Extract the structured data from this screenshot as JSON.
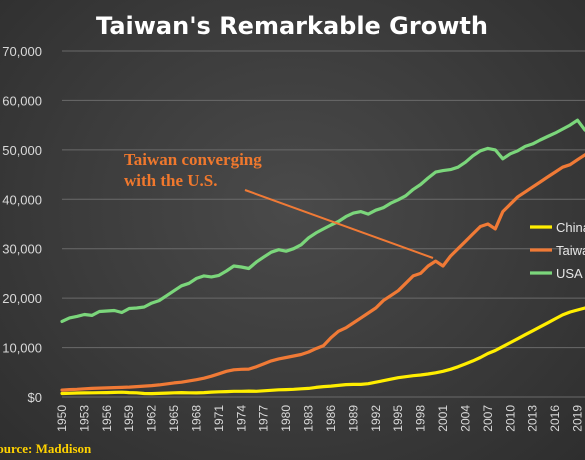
{
  "chart_data": {
    "type": "line",
    "title": "Taiwan's Remarkable Growth",
    "xlabel": "",
    "ylabel": "",
    "ylim": [
      0,
      70000
    ],
    "yticks": [
      "$0",
      "10,000",
      "20,000",
      "30,000",
      "40,000",
      "50,000",
      "60,000",
      "70,000"
    ],
    "x": [
      1950,
      1951,
      1952,
      1953,
      1954,
      1955,
      1956,
      1957,
      1958,
      1959,
      1960,
      1961,
      1962,
      1963,
      1964,
      1965,
      1966,
      1967,
      1968,
      1969,
      1970,
      1971,
      1972,
      1973,
      1974,
      1975,
      1976,
      1977,
      1978,
      1979,
      1980,
      1981,
      1982,
      1983,
      1984,
      1985,
      1986,
      1987,
      1988,
      1989,
      1990,
      1991,
      1992,
      1993,
      1994,
      1995,
      1996,
      1997,
      1998,
      1999,
      2000,
      2001,
      2002,
      2003,
      2004,
      2005,
      2006,
      2007,
      2008,
      2009,
      2010,
      2011,
      2012,
      2013,
      2014,
      2015,
      2016,
      2017,
      2018,
      2019,
      2020
    ],
    "xtick_labels": [
      "1950",
      "1953",
      "1956",
      "1959",
      "1962",
      "1965",
      "1968",
      "1971",
      "1974",
      "1977",
      "1980",
      "1983",
      "1986",
      "1989",
      "1992",
      "1995",
      "1998",
      "2001",
      "2004",
      "2007",
      "2010",
      "2013",
      "2016",
      "2019"
    ],
    "grid": true,
    "legend": "right",
    "series": [
      {
        "name": "China",
        "color": "#ffee00",
        "values": [
          700,
          750,
          800,
          820,
          850,
          880,
          900,
          930,
          980,
          900,
          850,
          700,
          680,
          720,
          780,
          850,
          900,
          850,
          820,
          900,
          1000,
          1050,
          1100,
          1150,
          1150,
          1200,
          1150,
          1250,
          1350,
          1450,
          1500,
          1550,
          1650,
          1750,
          1950,
          2100,
          2200,
          2350,
          2500,
          2550,
          2550,
          2700,
          3000,
          3300,
          3600,
          3900,
          4100,
          4300,
          4450,
          4650,
          4900,
          5200,
          5600,
          6100,
          6700,
          7300,
          8000,
          8800,
          9400,
          10200,
          11000,
          11800,
          12600,
          13400,
          14200,
          15000,
          15800,
          16600,
          17200,
          17600,
          18000
        ]
      },
      {
        "name": "Taiwan",
        "color": "#f07a36",
        "values": [
          1400,
          1500,
          1550,
          1650,
          1750,
          1800,
          1850,
          1900,
          1950,
          2000,
          2100,
          2200,
          2300,
          2450,
          2650,
          2850,
          3000,
          3250,
          3500,
          3800,
          4200,
          4700,
          5200,
          5500,
          5600,
          5650,
          6100,
          6700,
          7300,
          7700,
          8000,
          8300,
          8600,
          9100,
          9800,
          10400,
          12000,
          13300,
          14000,
          15000,
          16000,
          17000,
          18000,
          19500,
          20500,
          21500,
          23000,
          24500,
          25000,
          26500,
          27500,
          26500,
          28500,
          30000,
          31500,
          33000,
          34500,
          35000,
          34000,
          37500,
          39000,
          40500,
          41500,
          42500,
          43500,
          44500,
          45500,
          46500,
          47000,
          48000,
          49000
        ]
      },
      {
        "name": "USA",
        "color": "#7bd67b",
        "values": [
          15300,
          16000,
          16300,
          16700,
          16500,
          17300,
          17400,
          17500,
          17100,
          17900,
          18000,
          18200,
          19000,
          19500,
          20500,
          21500,
          22500,
          23000,
          24000,
          24500,
          24300,
          24600,
          25500,
          26500,
          26300,
          26000,
          27300,
          28300,
          29300,
          29800,
          29500,
          30000,
          30800,
          32200,
          33200,
          34000,
          34800,
          35500,
          36500,
          37200,
          37500,
          37000,
          37800,
          38300,
          39200,
          39900,
          40700,
          42000,
          43000,
          44300,
          45500,
          45800,
          46000,
          46500,
          47500,
          48800,
          49800,
          50300,
          50000,
          48200,
          49200,
          49800,
          50700,
          51200,
          52000,
          52700,
          53400,
          54200,
          55000,
          56000,
          54000
        ]
      }
    ],
    "annotations": [
      "Taiwan converging",
      "with the U.S."
    ],
    "source": "Source: Maddison"
  }
}
